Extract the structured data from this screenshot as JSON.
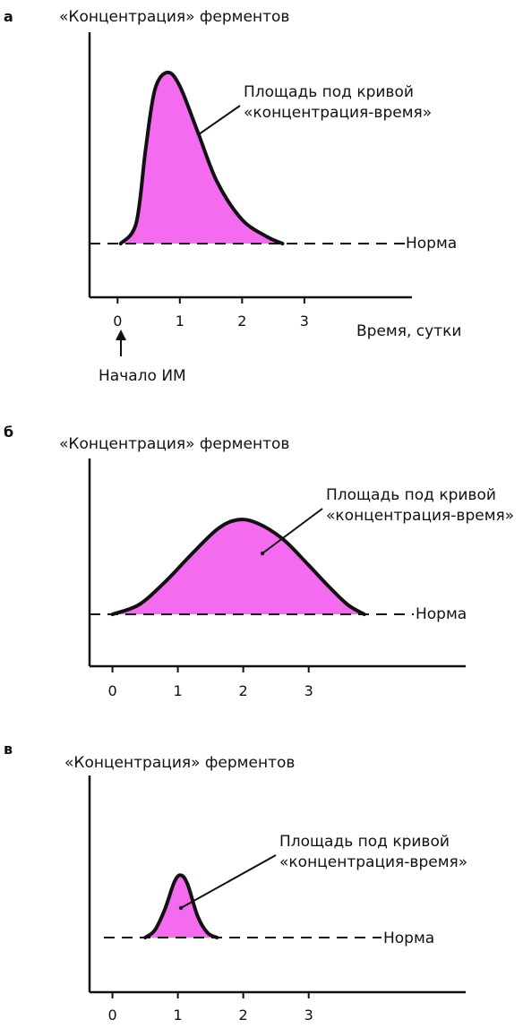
{
  "figure": {
    "fill_color": "#f56bf0",
    "line_color": "#111111"
  },
  "chart_data": [
    {
      "type": "area",
      "panel_label": "а",
      "ylabel": "«Концентрация» ферментов",
      "xlabel": "Время, сутки",
      "x_ticks": [
        "0",
        "1",
        "2",
        "3"
      ],
      "xlim": [
        -0.45,
        4.8
      ],
      "ylim": [
        0,
        1.12
      ],
      "baseline": 0,
      "baseline_label": "Норма",
      "annotation": [
        "Площадь под кривой",
        "«концентрация-время»"
      ],
      "onset_label": "Начало ИМ",
      "x": [
        0.05,
        0.3,
        0.45,
        0.6,
        0.8,
        1.0,
        1.3,
        1.6,
        2.0,
        2.4,
        2.65
      ],
      "y": [
        0,
        0.12,
        0.55,
        0.9,
        1.0,
        0.92,
        0.64,
        0.36,
        0.14,
        0.04,
        0
      ]
    },
    {
      "type": "area",
      "panel_label": "б",
      "ylabel": "«Концентрация» ферментов",
      "x_ticks": [
        "0",
        "1",
        "2",
        "3"
      ],
      "xlim": [
        -0.35,
        5.4
      ],
      "ylim": [
        0,
        1.12
      ],
      "baseline": 0,
      "baseline_label": "Норма",
      "annotation": [
        "Площадь под кривой",
        "«концентрация-время»"
      ],
      "x": [
        0.0,
        0.4,
        0.8,
        1.2,
        1.6,
        1.9,
        2.2,
        2.6,
        3.0,
        3.3,
        3.6,
        3.85
      ],
      "y": [
        0,
        0.1,
        0.34,
        0.63,
        0.9,
        1.0,
        0.97,
        0.8,
        0.52,
        0.3,
        0.1,
        0
      ]
    },
    {
      "type": "area",
      "panel_label": "в",
      "ylabel": "«Концентрация» ферментов",
      "x_ticks": [
        "0",
        "1",
        "2",
        "3"
      ],
      "xlim": [
        -0.35,
        5.4
      ],
      "ylim": [
        0,
        1.12
      ],
      "baseline": 0,
      "baseline_label": "Норма",
      "annotation": [
        "Площадь под кривой",
        "«концентрация-время»"
      ],
      "x": [
        0.5,
        0.65,
        0.8,
        0.95,
        1.05,
        1.15,
        1.3,
        1.45,
        1.6
      ],
      "y": [
        0,
        0.12,
        0.45,
        0.9,
        1.0,
        0.85,
        0.35,
        0.08,
        0
      ]
    }
  ]
}
